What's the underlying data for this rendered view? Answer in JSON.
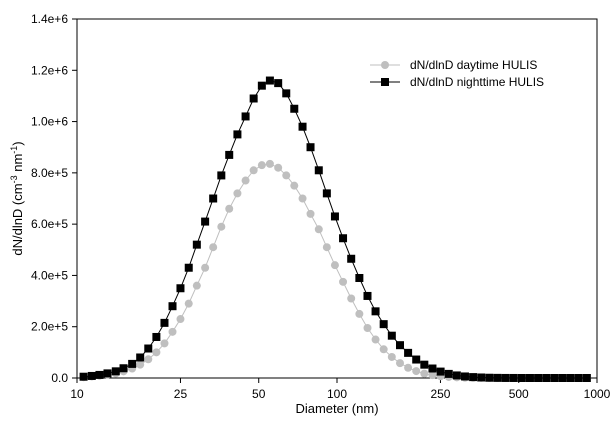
{
  "chart_data": {
    "type": "scatter",
    "title": "",
    "xlabel": "Diameter (nm)",
    "ylabel": {
      "base": "dN/dlnD (cm",
      "sup1": "-3",
      "mid": " nm",
      "sup2": "-1",
      "end": ")"
    },
    "x_scale": "log",
    "xlim": [
      10,
      1000
    ],
    "ylim": [
      0,
      1400000
    ],
    "x_ticks": [
      {
        "value": 10,
        "label": "10"
      },
      {
        "value": 25,
        "label": "25"
      },
      {
        "value": 50,
        "label": "50"
      },
      {
        "value": 100,
        "label": "100"
      },
      {
        "value": 250,
        "label": "250"
      },
      {
        "value": 500,
        "label": "500"
      },
      {
        "value": 1000,
        "label": "1000"
      }
    ],
    "y_ticks": [
      {
        "value": 0,
        "label": "0.0"
      },
      {
        "value": 200000,
        "label": "2.0e+5"
      },
      {
        "value": 400000,
        "label": "4.0e+5"
      },
      {
        "value": 600000,
        "label": "6.0e+5"
      },
      {
        "value": 800000,
        "label": "8.0e+5"
      },
      {
        "value": 1000000,
        "label": "1.0e+6"
      },
      {
        "value": 1200000,
        "label": "1.2e+6"
      },
      {
        "value": 1400000,
        "label": "1.4e+6"
      }
    ],
    "grid": false,
    "legend_position": "top-right",
    "x": [
      10.6,
      11.4,
      12.2,
      13.1,
      14.1,
      15.1,
      16.3,
      17.5,
      18.8,
      20.2,
      21.7,
      23.3,
      25.0,
      26.9,
      28.9,
      31.1,
      33.4,
      35.9,
      38.5,
      41.4,
      44.5,
      47.8,
      51.4,
      55.2,
      59.4,
      63.8,
      68.5,
      73.7,
      79.1,
      85.1,
      91.4,
      98.2,
      105.5,
      113.4,
      121.9,
      131.0,
      140.7,
      151.2,
      162.5,
      174.7,
      187.7,
      201.7,
      216.7,
      232.9,
      250.3,
      269.0,
      289.0,
      310.6,
      333.8,
      358.7,
      385.4,
      414.2,
      445.1,
      478.3,
      514.0,
      552.3,
      593.5,
      637.8,
      685.4,
      736.5,
      791.5,
      850.5,
      914.0
    ],
    "series": [
      {
        "name": "dN/dlnD daytime HULIS",
        "color": "#bfbfbf",
        "marker": "circle",
        "values": [
          3000,
          6000,
          9000,
          13000,
          18000,
          26000,
          37000,
          52000,
          73000,
          100000,
          135000,
          180000,
          230000,
          290000,
          360000,
          430000,
          510000,
          590000,
          660000,
          720000,
          770000,
          810000,
          830000,
          835000,
          820000,
          790000,
          750000,
          700000,
          640000,
          580000,
          510000,
          440000,
          375000,
          310000,
          250000,
          195000,
          150000,
          112000,
          82000,
          58000,
          40000,
          27000,
          17000,
          11000,
          7000,
          4000,
          2500,
          1500,
          800,
          400,
          200,
          100,
          0,
          0,
          0,
          0,
          0,
          0,
          0,
          0,
          0,
          0,
          0
        ]
      },
      {
        "name": "dN/dlnD nighttime HULIS",
        "color": "#000000",
        "marker": "square",
        "values": [
          5000,
          8000,
          12000,
          18000,
          26000,
          38000,
          55000,
          80000,
          115000,
          160000,
          215000,
          280000,
          350000,
          430000,
          520000,
          610000,
          700000,
          790000,
          870000,
          950000,
          1020000,
          1090000,
          1140000,
          1160000,
          1150000,
          1110000,
          1050000,
          980000,
          900000,
          810000,
          720000,
          630000,
          545000,
          465000,
          390000,
          320000,
          260000,
          210000,
          165000,
          128000,
          98000,
          72000,
          52000,
          37000,
          25000,
          16000,
          10000,
          6000,
          3500,
          2000,
          1000,
          500,
          200,
          100,
          0,
          0,
          0,
          0,
          0,
          0,
          0,
          0,
          0
        ]
      }
    ]
  }
}
